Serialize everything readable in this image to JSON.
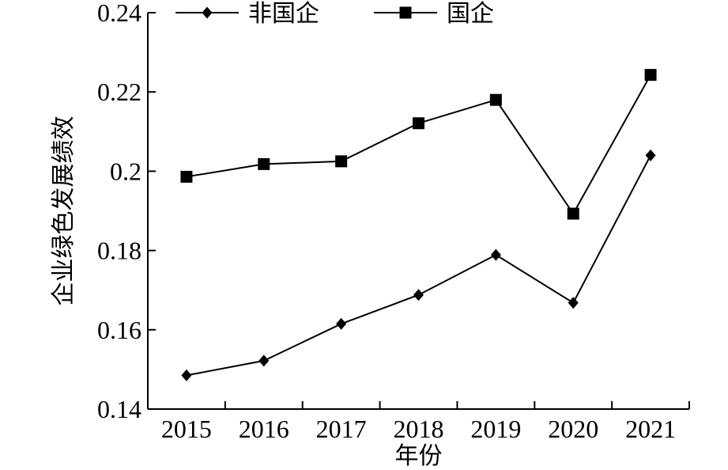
{
  "chart_data": {
    "type": "line",
    "title": "",
    "xlabel": "年份",
    "ylabel": "企业绿色发展绩效",
    "categories": [
      "2015",
      "2016",
      "2017",
      "2018",
      "2019",
      "2020",
      "2021"
    ],
    "ylim": [
      0.14,
      0.24
    ],
    "yticks": [
      "0.14",
      "0.16",
      "0.18",
      "0.2",
      "0.22",
      "0.24"
    ],
    "grid": false,
    "legend_position": "top",
    "series": [
      {
        "name": "非国企",
        "marker": "diamond",
        "color": "#000000",
        "values": [
          0.1485,
          0.1522,
          0.1615,
          0.1688,
          0.1789,
          0.1668,
          0.204
        ]
      },
      {
        "name": "国企",
        "marker": "square",
        "color": "#000000",
        "values": [
          0.1986,
          0.2018,
          0.2025,
          0.2121,
          0.218,
          0.1893,
          0.2243
        ]
      }
    ]
  }
}
